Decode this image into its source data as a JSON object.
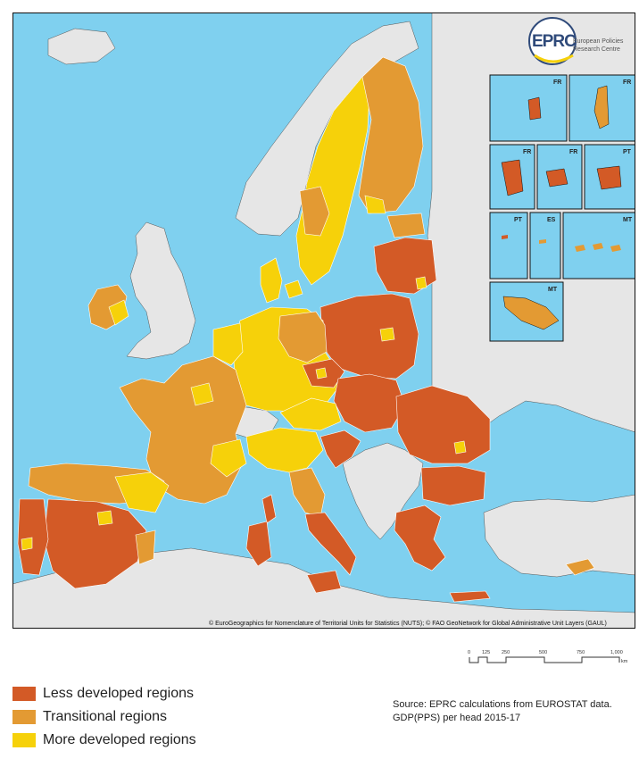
{
  "map": {
    "insets": [
      {
        "label": "FR"
      },
      {
        "label": "FR"
      },
      {
        "label": "FR"
      },
      {
        "label": "FR"
      },
      {
        "label": "PT"
      },
      {
        "label": "PT"
      },
      {
        "label": "ES"
      },
      {
        "label": "MT"
      }
    ],
    "logo": {
      "mark": "EPRC",
      "line1": "European Policies",
      "line2": "Research Centre"
    },
    "copyright": "© EuroGeographics for Nomenclature of Territorial Units for Statistics (NUTS); © FAO GeoNetwork for Global Administrative Unit Layers (GAUL)",
    "colors": {
      "sea": "#7fd0ef",
      "non_eu": "#e6e6e6",
      "less_developed": "#d35a26",
      "transitional": "#e39a33",
      "more_developed": "#f6d10a",
      "border": "#111111"
    }
  },
  "scale": {
    "ticks": [
      "0",
      "125",
      "250",
      "500",
      "750",
      "1,000"
    ],
    "unit": "km"
  },
  "legend": [
    {
      "label": "Less developed regions",
      "color": "#d35a26"
    },
    {
      "label": "Transitional regions",
      "color": "#e39a33"
    },
    {
      "label": "More developed regions",
      "color": "#f6d10a"
    }
  ],
  "source": {
    "line1": "Source: EPRC calculations from EUROSTAT data.",
    "line2": "GDP(PPS) per head 2015-17"
  }
}
